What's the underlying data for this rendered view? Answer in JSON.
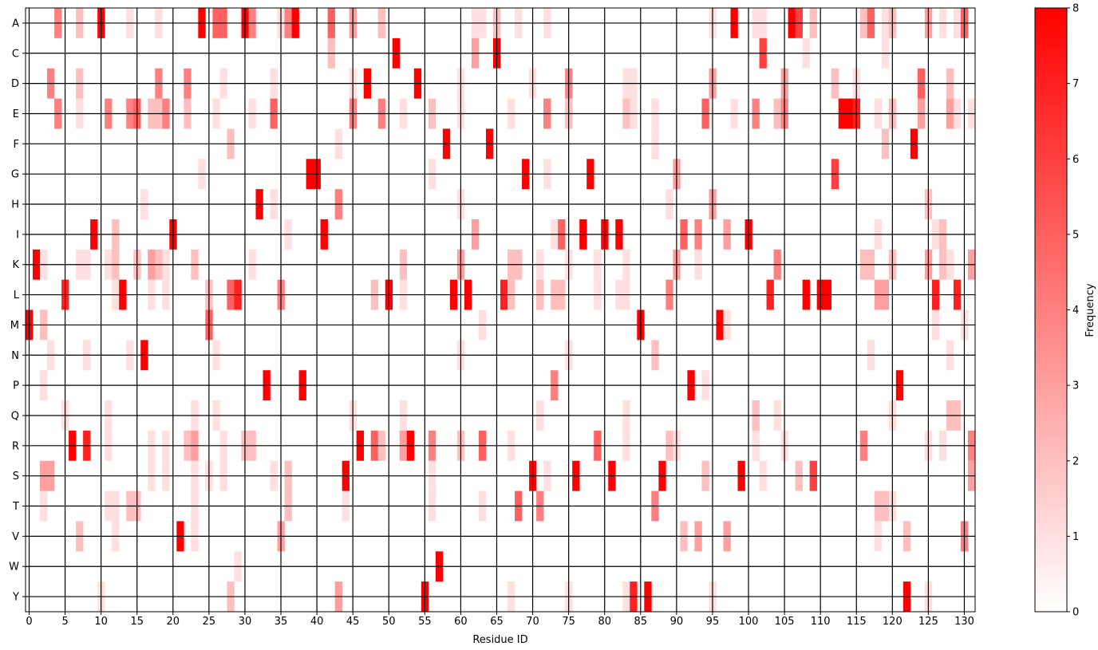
{
  "chart_data": {
    "type": "heatmap",
    "title": "",
    "xlabel": "Residue ID",
    "ylabel": "",
    "colorbar_label": "Frequency",
    "xlim": [
      -0.5,
      131.5
    ],
    "x_ticks": [
      0,
      5,
      10,
      15,
      20,
      25,
      30,
      35,
      40,
      45,
      50,
      55,
      60,
      65,
      70,
      75,
      80,
      85,
      90,
      95,
      100,
      105,
      110,
      115,
      120,
      125,
      130
    ],
    "rows": [
      "A",
      "C",
      "D",
      "E",
      "F",
      "G",
      "H",
      "I",
      "K",
      "L",
      "M",
      "N",
      "P",
      "Q",
      "R",
      "S",
      "T",
      "V",
      "W",
      "Y"
    ],
    "color_range": [
      0,
      8
    ],
    "colorbar_ticks": [
      0,
      1,
      2,
      3,
      4,
      5,
      6,
      7,
      8
    ],
    "color_low": "#ffffff",
    "color_high": "#ff0000",
    "grid": true,
    "cells": [
      [
        "A",
        4,
        4
      ],
      [
        "A",
        7,
        2
      ],
      [
        "A",
        10,
        8
      ],
      [
        "A",
        14,
        1
      ],
      [
        "A",
        18,
        1
      ],
      [
        "A",
        24,
        8
      ],
      [
        "A",
        26,
        5
      ],
      [
        "A",
        27,
        5
      ],
      [
        "A",
        30,
        8
      ],
      [
        "A",
        31,
        4
      ],
      [
        "A",
        35,
        1
      ],
      [
        "A",
        36,
        4
      ],
      [
        "A",
        37,
        8
      ],
      [
        "A",
        42,
        5
      ],
      [
        "A",
        45,
        3
      ],
      [
        "A",
        49,
        2
      ],
      [
        "A",
        62,
        1
      ],
      [
        "A",
        63,
        1
      ],
      [
        "A",
        65,
        2
      ],
      [
        "A",
        68,
        1
      ],
      [
        "A",
        72,
        1
      ],
      [
        "A",
        95,
        1
      ],
      [
        "A",
        98,
        8
      ],
      [
        "A",
        101,
        1
      ],
      [
        "A",
        102,
        1
      ],
      [
        "A",
        106,
        8
      ],
      [
        "A",
        107,
        6
      ],
      [
        "A",
        109,
        2
      ],
      [
        "A",
        116,
        2
      ],
      [
        "A",
        117,
        5
      ],
      [
        "A",
        119,
        1
      ],
      [
        "A",
        120,
        2
      ],
      [
        "A",
        125,
        3
      ],
      [
        "A",
        127,
        1
      ],
      [
        "A",
        129,
        1
      ],
      [
        "A",
        130,
        5
      ],
      [
        "C",
        42,
        2
      ],
      [
        "C",
        51,
        8
      ],
      [
        "C",
        62,
        3
      ],
      [
        "C",
        65,
        8
      ],
      [
        "C",
        102,
        6
      ],
      [
        "C",
        108,
        1
      ],
      [
        "C",
        119,
        1
      ],
      [
        "D",
        3,
        4
      ],
      [
        "D",
        7,
        2
      ],
      [
        "D",
        18,
        4
      ],
      [
        "D",
        22,
        4
      ],
      [
        "D",
        27,
        1
      ],
      [
        "D",
        34,
        1
      ],
      [
        "D",
        45,
        1
      ],
      [
        "D",
        47,
        8
      ],
      [
        "D",
        54,
        8
      ],
      [
        "D",
        60,
        1
      ],
      [
        "D",
        70,
        1
      ],
      [
        "D",
        75,
        4
      ],
      [
        "D",
        83,
        1
      ],
      [
        "D",
        84,
        1
      ],
      [
        "D",
        95,
        3
      ],
      [
        "D",
        105,
        3
      ],
      [
        "D",
        112,
        2
      ],
      [
        "D",
        115,
        1
      ],
      [
        "D",
        124,
        5
      ],
      [
        "D",
        128,
        2
      ],
      [
        "E",
        4,
        4
      ],
      [
        "E",
        7,
        1
      ],
      [
        "E",
        11,
        4
      ],
      [
        "E",
        14,
        4
      ],
      [
        "E",
        15,
        5
      ],
      [
        "E",
        17,
        2
      ],
      [
        "E",
        18,
        2
      ],
      [
        "E",
        19,
        4
      ],
      [
        "E",
        22,
        2
      ],
      [
        "E",
        26,
        1
      ],
      [
        "E",
        31,
        1
      ],
      [
        "E",
        34,
        5
      ],
      [
        "E",
        45,
        4
      ],
      [
        "E",
        49,
        4
      ],
      [
        "E",
        52,
        1
      ],
      [
        "E",
        56,
        2
      ],
      [
        "E",
        60,
        1
      ],
      [
        "E",
        67,
        1
      ],
      [
        "E",
        72,
        4
      ],
      [
        "E",
        75,
        2
      ],
      [
        "E",
        83,
        2
      ],
      [
        "E",
        84,
        1
      ],
      [
        "E",
        87,
        1
      ],
      [
        "E",
        94,
        5
      ],
      [
        "E",
        98,
        1
      ],
      [
        "E",
        101,
        4
      ],
      [
        "E",
        104,
        2
      ],
      [
        "E",
        105,
        4
      ],
      [
        "E",
        113,
        8
      ],
      [
        "E",
        114,
        8
      ],
      [
        "E",
        115,
        7
      ],
      [
        "E",
        118,
        1
      ],
      [
        "E",
        120,
        2
      ],
      [
        "E",
        124,
        3
      ],
      [
        "E",
        128,
        3
      ],
      [
        "E",
        129,
        1
      ],
      [
        "E",
        131,
        1
      ],
      [
        "F",
        28,
        2
      ],
      [
        "F",
        43,
        1
      ],
      [
        "F",
        58,
        8
      ],
      [
        "F",
        64,
        8
      ],
      [
        "F",
        87,
        1
      ],
      [
        "F",
        119,
        2
      ],
      [
        "F",
        123,
        8
      ],
      [
        "G",
        24,
        1
      ],
      [
        "G",
        39,
        8
      ],
      [
        "G",
        40,
        8
      ],
      [
        "G",
        56,
        1
      ],
      [
        "G",
        69,
        8
      ],
      [
        "G",
        72,
        1
      ],
      [
        "G",
        78,
        8
      ],
      [
        "G",
        90,
        3
      ],
      [
        "G",
        112,
        6
      ],
      [
        "H",
        16,
        1
      ],
      [
        "H",
        32,
        8
      ],
      [
        "H",
        34,
        1
      ],
      [
        "H",
        43,
        4
      ],
      [
        "H",
        60,
        1
      ],
      [
        "H",
        89,
        1
      ],
      [
        "H",
        95,
        3
      ],
      [
        "H",
        125,
        2
      ],
      [
        "I",
        9,
        8
      ],
      [
        "I",
        12,
        2
      ],
      [
        "I",
        20,
        8
      ],
      [
        "I",
        36,
        1
      ],
      [
        "I",
        41,
        8
      ],
      [
        "I",
        62,
        3
      ],
      [
        "I",
        73,
        1
      ],
      [
        "I",
        74,
        5
      ],
      [
        "I",
        77,
        8
      ],
      [
        "I",
        80,
        8
      ],
      [
        "I",
        82,
        8
      ],
      [
        "I",
        91,
        5
      ],
      [
        "I",
        93,
        4
      ],
      [
        "I",
        97,
        3
      ],
      [
        "I",
        100,
        8
      ],
      [
        "I",
        118,
        1
      ],
      [
        "I",
        126,
        1
      ],
      [
        "I",
        127,
        2
      ],
      [
        "K",
        1,
        8
      ],
      [
        "K",
        2,
        1
      ],
      [
        "K",
        7,
        1
      ],
      [
        "K",
        8,
        1
      ],
      [
        "K",
        11,
        1
      ],
      [
        "K",
        12,
        2
      ],
      [
        "K",
        15,
        2
      ],
      [
        "K",
        17,
        3
      ],
      [
        "K",
        18,
        2
      ],
      [
        "K",
        19,
        1
      ],
      [
        "K",
        23,
        2
      ],
      [
        "K",
        31,
        1
      ],
      [
        "K",
        52,
        2
      ],
      [
        "K",
        60,
        3
      ],
      [
        "K",
        67,
        2
      ],
      [
        "K",
        68,
        2
      ],
      [
        "K",
        71,
        1
      ],
      [
        "K",
        75,
        1
      ],
      [
        "K",
        79,
        1
      ],
      [
        "K",
        83,
        1
      ],
      [
        "K",
        90,
        3
      ],
      [
        "K",
        93,
        1
      ],
      [
        "K",
        104,
        4
      ],
      [
        "K",
        116,
        2
      ],
      [
        "K",
        117,
        2
      ],
      [
        "K",
        120,
        2
      ],
      [
        "K",
        125,
        3
      ],
      [
        "K",
        127,
        2
      ],
      [
        "K",
        128,
        1
      ],
      [
        "K",
        131,
        3
      ],
      [
        "L",
        5,
        7
      ],
      [
        "L",
        12,
        1
      ],
      [
        "L",
        13,
        8
      ],
      [
        "L",
        17,
        1
      ],
      [
        "L",
        19,
        1
      ],
      [
        "L",
        25,
        2
      ],
      [
        "L",
        28,
        5
      ],
      [
        "L",
        29,
        7
      ],
      [
        "L",
        35,
        4
      ],
      [
        "L",
        48,
        2
      ],
      [
        "L",
        50,
        8
      ],
      [
        "L",
        52,
        1
      ],
      [
        "L",
        59,
        8
      ],
      [
        "L",
        61,
        8
      ],
      [
        "L",
        66,
        7
      ],
      [
        "L",
        67,
        2
      ],
      [
        "L",
        71,
        2
      ],
      [
        "L",
        73,
        2
      ],
      [
        "L",
        74,
        2
      ],
      [
        "L",
        79,
        1
      ],
      [
        "L",
        82,
        1
      ],
      [
        "L",
        83,
        1
      ],
      [
        "L",
        89,
        4
      ],
      [
        "L",
        103,
        7
      ],
      [
        "L",
        108,
        8
      ],
      [
        "L",
        110,
        8
      ],
      [
        "L",
        111,
        8
      ],
      [
        "L",
        118,
        3
      ],
      [
        "L",
        119,
        3
      ],
      [
        "L",
        126,
        7
      ],
      [
        "L",
        129,
        7
      ],
      [
        "M",
        0,
        8
      ],
      [
        "M",
        2,
        2
      ],
      [
        "M",
        25,
        5
      ],
      [
        "M",
        63,
        1
      ],
      [
        "M",
        85,
        8
      ],
      [
        "M",
        96,
        8
      ],
      [
        "M",
        97,
        1
      ],
      [
        "M",
        126,
        1
      ],
      [
        "M",
        130,
        1
      ],
      [
        "N",
        3,
        1
      ],
      [
        "N",
        8,
        1
      ],
      [
        "N",
        14,
        1
      ],
      [
        "N",
        16,
        8
      ],
      [
        "N",
        26,
        1
      ],
      [
        "N",
        60,
        1
      ],
      [
        "N",
        75,
        1
      ],
      [
        "N",
        87,
        2
      ],
      [
        "N",
        117,
        1
      ],
      [
        "N",
        128,
        1
      ],
      [
        "P",
        2,
        1
      ],
      [
        "P",
        33,
        8
      ],
      [
        "P",
        38,
        8
      ],
      [
        "P",
        73,
        4
      ],
      [
        "P",
        92,
        8
      ],
      [
        "P",
        94,
        1
      ],
      [
        "P",
        121,
        8
      ],
      [
        "Q",
        5,
        1
      ],
      [
        "Q",
        11,
        1
      ],
      [
        "Q",
        23,
        1
      ],
      [
        "Q",
        26,
        1
      ],
      [
        "Q",
        45,
        1
      ],
      [
        "Q",
        52,
        1
      ],
      [
        "Q",
        71,
        1
      ],
      [
        "Q",
        83,
        1
      ],
      [
        "Q",
        101,
        2
      ],
      [
        "Q",
        104,
        1
      ],
      [
        "Q",
        120,
        1
      ],
      [
        "Q",
        128,
        2
      ],
      [
        "Q",
        129,
        2
      ],
      [
        "R",
        6,
        8
      ],
      [
        "R",
        8,
        7
      ],
      [
        "R",
        11,
        1
      ],
      [
        "R",
        17,
        1
      ],
      [
        "R",
        19,
        1
      ],
      [
        "R",
        22,
        2
      ],
      [
        "R",
        23,
        3
      ],
      [
        "R",
        27,
        1
      ],
      [
        "R",
        30,
        2
      ],
      [
        "R",
        31,
        2
      ],
      [
        "R",
        46,
        8
      ],
      [
        "R",
        48,
        5
      ],
      [
        "R",
        49,
        2
      ],
      [
        "R",
        52,
        3
      ],
      [
        "R",
        53,
        8
      ],
      [
        "R",
        56,
        4
      ],
      [
        "R",
        60,
        2
      ],
      [
        "R",
        63,
        5
      ],
      [
        "R",
        67,
        1
      ],
      [
        "R",
        79,
        5
      ],
      [
        "R",
        83,
        1
      ],
      [
        "R",
        89,
        2
      ],
      [
        "R",
        90,
        1
      ],
      [
        "R",
        101,
        1
      ],
      [
        "R",
        105,
        1
      ],
      [
        "R",
        116,
        4
      ],
      [
        "R",
        125,
        1
      ],
      [
        "R",
        127,
        1
      ],
      [
        "R",
        131,
        4
      ],
      [
        "S",
        2,
        3
      ],
      [
        "S",
        3,
        3
      ],
      [
        "S",
        17,
        1
      ],
      [
        "S",
        19,
        1
      ],
      [
        "S",
        23,
        1
      ],
      [
        "S",
        25,
        1
      ],
      [
        "S",
        27,
        1
      ],
      [
        "S",
        34,
        1
      ],
      [
        "S",
        36,
        2
      ],
      [
        "S",
        44,
        8
      ],
      [
        "S",
        56,
        1
      ],
      [
        "S",
        70,
        8
      ],
      [
        "S",
        72,
        1
      ],
      [
        "S",
        76,
        8
      ],
      [
        "S",
        81,
        8
      ],
      [
        "S",
        88,
        8
      ],
      [
        "S",
        94,
        2
      ],
      [
        "S",
        99,
        8
      ],
      [
        "S",
        102,
        1
      ],
      [
        "S",
        107,
        2
      ],
      [
        "S",
        109,
        6
      ],
      [
        "S",
        131,
        3
      ],
      [
        "T",
        2,
        1
      ],
      [
        "T",
        11,
        1
      ],
      [
        "T",
        12,
        1
      ],
      [
        "T",
        14,
        2
      ],
      [
        "T",
        15,
        2
      ],
      [
        "T",
        23,
        1
      ],
      [
        "T",
        36,
        2
      ],
      [
        "T",
        44,
        1
      ],
      [
        "T",
        56,
        1
      ],
      [
        "T",
        63,
        1
      ],
      [
        "T",
        68,
        5
      ],
      [
        "T",
        71,
        4
      ],
      [
        "T",
        87,
        4
      ],
      [
        "T",
        118,
        2
      ],
      [
        "T",
        119,
        2
      ],
      [
        "T",
        120,
        1
      ],
      [
        "V",
        7,
        2
      ],
      [
        "V",
        12,
        1
      ],
      [
        "V",
        21,
        8
      ],
      [
        "V",
        23,
        1
      ],
      [
        "V",
        35,
        3
      ],
      [
        "V",
        91,
        2
      ],
      [
        "V",
        93,
        3
      ],
      [
        "V",
        97,
        3
      ],
      [
        "V",
        118,
        1
      ],
      [
        "V",
        122,
        2
      ],
      [
        "V",
        130,
        4
      ],
      [
        "W",
        29,
        1
      ],
      [
        "W",
        57,
        8
      ],
      [
        "Y",
        10,
        1
      ],
      [
        "Y",
        28,
        2
      ],
      [
        "Y",
        43,
        3
      ],
      [
        "Y",
        55,
        8
      ],
      [
        "Y",
        67,
        1
      ],
      [
        "Y",
        75,
        1
      ],
      [
        "Y",
        83,
        1
      ],
      [
        "Y",
        84,
        7
      ],
      [
        "Y",
        86,
        8
      ],
      [
        "Y",
        95,
        1
      ],
      [
        "Y",
        122,
        8
      ],
      [
        "Y",
        125,
        1
      ]
    ]
  }
}
